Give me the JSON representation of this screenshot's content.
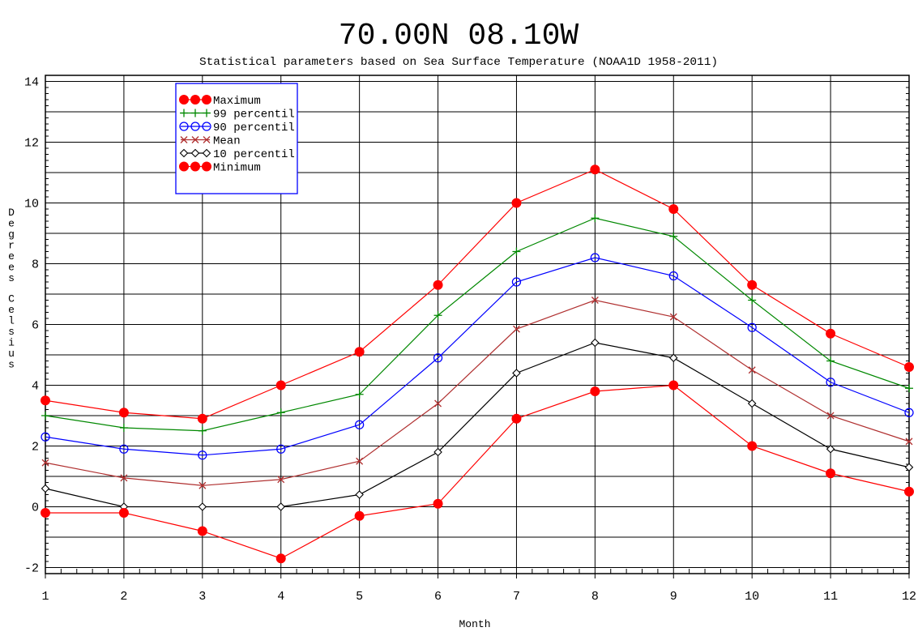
{
  "chart_data": {
    "type": "line",
    "title": "70.00N  08.10W",
    "subtitle": "Statistical parameters based on Sea Surface Temperature (NOAA1D 1958-2011)",
    "xlabel": "Month",
    "ylabel": "Degrees Celsius",
    "xlim": [
      1,
      12
    ],
    "ylim": [
      -2.2,
      14.2
    ],
    "x_ticks": [
      1,
      2,
      3,
      4,
      5,
      6,
      7,
      8,
      9,
      10,
      11,
      12
    ],
    "y_ticks": [
      -2,
      0,
      2,
      4,
      6,
      8,
      10,
      12,
      14
    ],
    "grid": true,
    "legend_position": "top-left",
    "x": [
      1,
      2,
      3,
      4,
      5,
      6,
      7,
      8,
      9,
      10,
      11,
      12
    ],
    "series": [
      {
        "name": "Maximum",
        "color": "#ff0000",
        "marker": "filled-circle",
        "values": [
          3.5,
          3.1,
          2.9,
          4.0,
          5.1,
          7.3,
          10.0,
          11.1,
          9.8,
          7.3,
          5.7,
          4.6
        ]
      },
      {
        "name": "99 percentil",
        "color": "#008800",
        "marker": "plus",
        "values": [
          3.0,
          2.6,
          2.5,
          3.1,
          3.7,
          6.3,
          8.4,
          9.5,
          8.9,
          6.8,
          4.8,
          3.9
        ]
      },
      {
        "name": "90 percentil",
        "color": "#0000ff",
        "marker": "open-circle",
        "values": [
          2.3,
          1.9,
          1.7,
          1.9,
          2.7,
          4.9,
          7.4,
          8.2,
          7.6,
          5.9,
          4.1,
          3.1
        ]
      },
      {
        "name": "Mean",
        "color": "#b03030",
        "marker": "x",
        "values": [
          1.45,
          0.95,
          0.7,
          0.9,
          1.5,
          3.4,
          5.85,
          6.8,
          6.25,
          4.5,
          3.0,
          2.15
        ]
      },
      {
        "name": "10 percentil",
        "color": "#000000",
        "marker": "diamond",
        "values": [
          0.6,
          0.0,
          0.0,
          0.0,
          0.4,
          1.8,
          4.4,
          5.4,
          4.9,
          3.4,
          1.9,
          1.3
        ]
      },
      {
        "name": "Minimum",
        "color": "#ff0000",
        "marker": "filled-circle",
        "values": [
          -0.2,
          -0.2,
          -0.8,
          -1.7,
          -0.3,
          0.1,
          2.9,
          3.8,
          4.0,
          2.0,
          1.1,
          0.5
        ]
      }
    ]
  }
}
